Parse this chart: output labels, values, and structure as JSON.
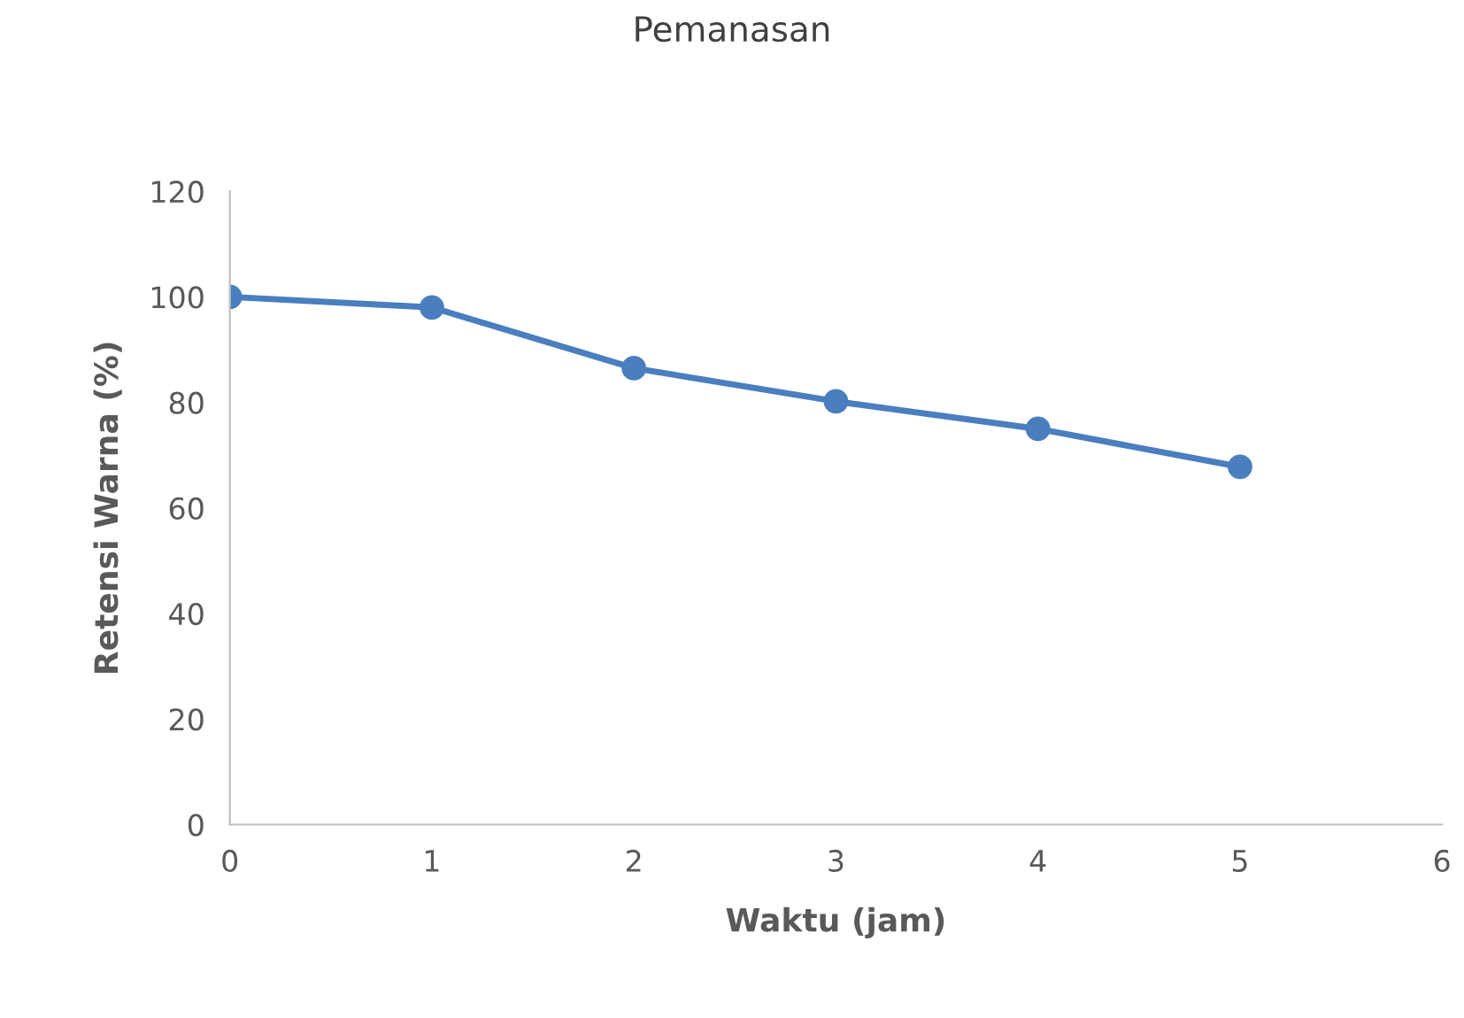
{
  "chart_data": {
    "type": "line",
    "title": "Pemanasan",
    "xlabel": "Waktu (jam)",
    "ylabel": "Retensi Warna (%)",
    "x": [
      0,
      1,
      2,
      3,
      4,
      5
    ],
    "series": [
      {
        "color": "#4a7ebf",
        "values": [
          100,
          98,
          86.5,
          80.2,
          75,
          67.8
        ]
      }
    ],
    "xlim": [
      0,
      6
    ],
    "xticks": [
      0,
      1,
      2,
      3,
      4,
      5,
      6
    ],
    "ylim": [
      0,
      120
    ],
    "yticks": [
      0,
      20,
      40,
      60,
      80,
      100,
      120
    ],
    "marker": "circle",
    "line_style": "solid",
    "grid": false,
    "legend": false
  }
}
